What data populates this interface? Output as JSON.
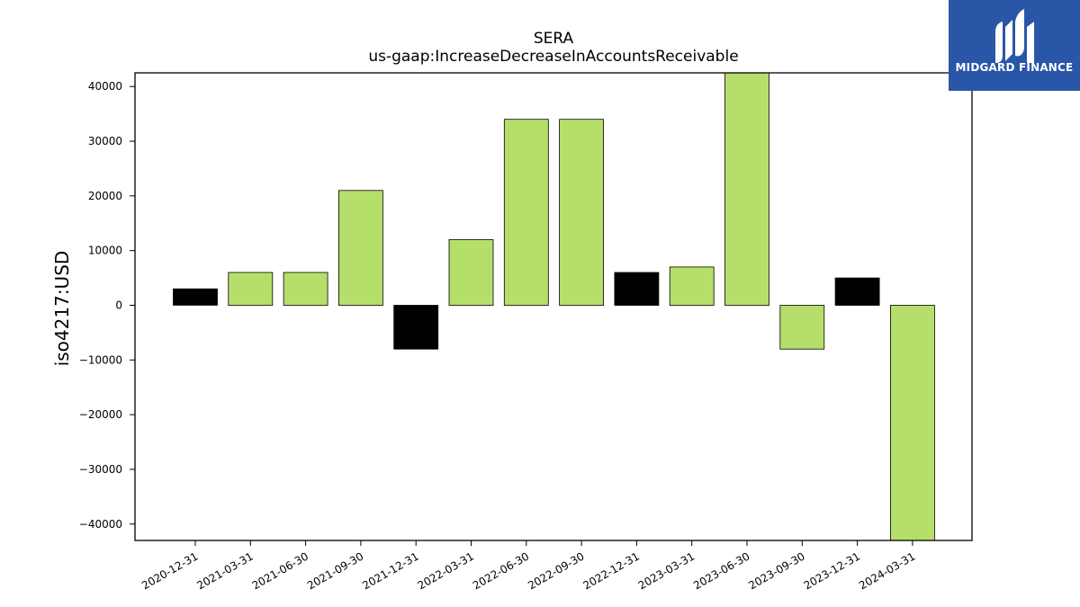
{
  "chart_data": {
    "type": "bar",
    "title": "SERA",
    "subtitle": "us-gaap:IncreaseDecreaseInAccountsReceivable",
    "xlabel": "",
    "ylabel": "iso4217:USD",
    "categories": [
      "2020-12-31",
      "2021-03-31",
      "2021-06-30",
      "2021-09-30",
      "2021-12-31",
      "2022-03-31",
      "2022-06-30",
      "2022-09-30",
      "2022-12-31",
      "2023-03-31",
      "2023-06-30",
      "2023-09-30",
      "2023-12-31",
      "2024-03-31"
    ],
    "values": [
      3000,
      6000,
      6000,
      21000,
      -8000,
      12000,
      34000,
      34000,
      6000,
      7000,
      42500,
      -8000,
      5000,
      -43000
    ],
    "bar_colors": [
      "#000000",
      "#b5df6a",
      "#b5df6a",
      "#b5df6a",
      "#000000",
      "#b5df6a",
      "#b5df6a",
      "#b5df6a",
      "#000000",
      "#b5df6a",
      "#b5df6a",
      "#b5df6a",
      "#000000",
      "#b5df6a"
    ],
    "ylim": [
      -43000,
      42500
    ],
    "yticks": [
      40000,
      30000,
      20000,
      10000,
      0,
      -10000,
      -20000,
      -30000,
      -40000
    ],
    "ytick_labels": [
      "40000",
      "30000",
      "20000",
      "10000",
      "0",
      "−10000",
      "−20000",
      "−30000",
      "−40000"
    ],
    "grid": false,
    "legend": "none"
  },
  "logo": {
    "text": "MIDGARD FINANCE",
    "background": "#2a56a8"
  }
}
